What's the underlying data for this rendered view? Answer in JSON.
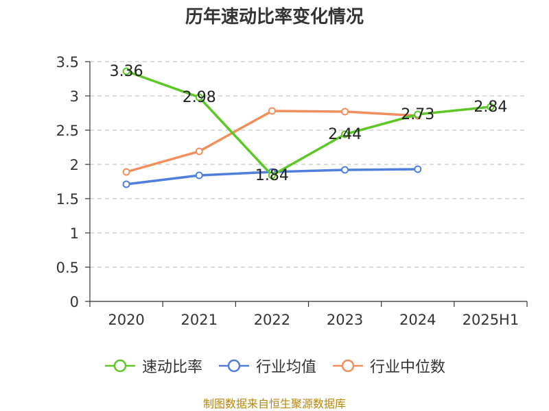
{
  "title": "历年速动比率变化情况",
  "source": "制图数据来自恒生聚源数据库",
  "chart_data": {
    "type": "line",
    "title": "历年速动比率变化情况",
    "categories": [
      "2020",
      "2021",
      "2022",
      "2023",
      "2024",
      "2025H1"
    ],
    "ylim": [
      0,
      3.5
    ],
    "yticks": [
      "0",
      "0.5",
      "1",
      "1.5",
      "2",
      "2.5",
      "3",
      "3.5"
    ],
    "grid": true,
    "legend_position": "bottom",
    "series": [
      {
        "name": "速动比率",
        "color": "#5cc726",
        "values": [
          3.36,
          2.98,
          1.84,
          2.44,
          2.73,
          2.84
        ],
        "labels": [
          "3.36",
          "2.98",
          "1.84",
          "2.44",
          "2.73",
          "2.84"
        ]
      },
      {
        "name": "行业均值",
        "color": "#4f7fdd",
        "values": [
          1.71,
          1.84,
          1.89,
          1.92,
          1.93,
          null
        ]
      },
      {
        "name": "行业中位数",
        "color": "#f28e5b",
        "values": [
          1.89,
          2.19,
          2.78,
          2.77,
          2.71,
          null
        ]
      }
    ]
  }
}
